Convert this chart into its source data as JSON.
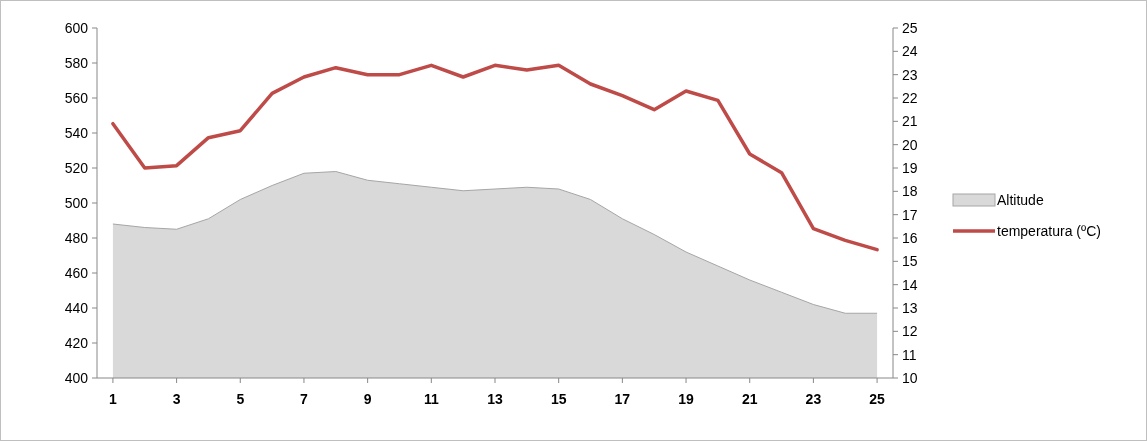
{
  "chart_data": {
    "type": "area",
    "x": [
      1,
      2,
      3,
      4,
      5,
      6,
      7,
      8,
      9,
      10,
      11,
      12,
      13,
      14,
      15,
      16,
      17,
      18,
      19,
      20,
      21,
      22,
      23,
      24,
      25
    ],
    "series": [
      {
        "name": "Altitude",
        "color": "#d9d9d9",
        "values": [
          488,
          486,
          485,
          491,
          502,
          510,
          517,
          518,
          513,
          511,
          509,
          507,
          508,
          509,
          508,
          502,
          491,
          482,
          472,
          464,
          456,
          449,
          442,
          437,
          437
        ]
      },
      {
        "name": "temperatura (ºC)",
        "type": "line",
        "axis": "y2",
        "color": "#be4b48",
        "values": [
          20.9,
          19.0,
          19.1,
          20.3,
          20.6,
          22.2,
          22.9,
          23.3,
          23.0,
          23.0,
          23.4,
          22.9,
          23.4,
          23.2,
          23.4,
          22.6,
          22.1,
          21.5,
          22.3,
          21.9,
          19.6,
          18.8,
          16.4,
          15.9,
          15.5
        ]
      }
    ],
    "xlim": [
      0.5,
      25.5
    ],
    "xticks": [
      1,
      3,
      5,
      7,
      9,
      11,
      13,
      15,
      17,
      19,
      21,
      23,
      25
    ],
    "ylim": [
      400,
      600
    ],
    "yticks": [
      400,
      420,
      440,
      460,
      480,
      500,
      520,
      540,
      560,
      580,
      600
    ],
    "y2lim": [
      10,
      25
    ],
    "y2ticks": [
      10,
      11,
      12,
      13,
      14,
      15,
      16,
      17,
      18,
      19,
      20,
      21,
      22,
      23,
      24,
      25
    ],
    "grid": false,
    "legend": "right"
  }
}
